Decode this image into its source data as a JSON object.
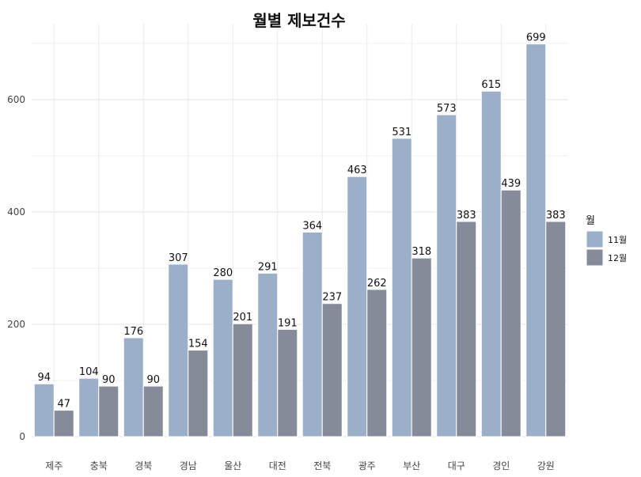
{
  "chart_data": {
    "type": "bar",
    "title": "월별 제보건수",
    "xlabel": "",
    "ylabel": "",
    "categories": [
      "제주",
      "충북",
      "경북",
      "경남",
      "울산",
      "대전",
      "전북",
      "광주",
      "부산",
      "대구",
      "경인",
      "강원"
    ],
    "series": [
      {
        "name": "11월",
        "color": "#9bafc8",
        "values": [
          94,
          104,
          176,
          307,
          280,
          291,
          364,
          463,
          531,
          573,
          615,
          699
        ]
      },
      {
        "name": "12월",
        "color": "#858b98",
        "values": [
          47,
          90,
          90,
          154,
          201,
          191,
          237,
          262,
          318,
          383,
          439,
          383
        ]
      }
    ],
    "ylim": [
      0,
      735
    ],
    "yticks": [
      0,
      200,
      400,
      600
    ],
    "grid": true,
    "legend": {
      "title": "월",
      "position": "right"
    },
    "data_labels": true
  }
}
